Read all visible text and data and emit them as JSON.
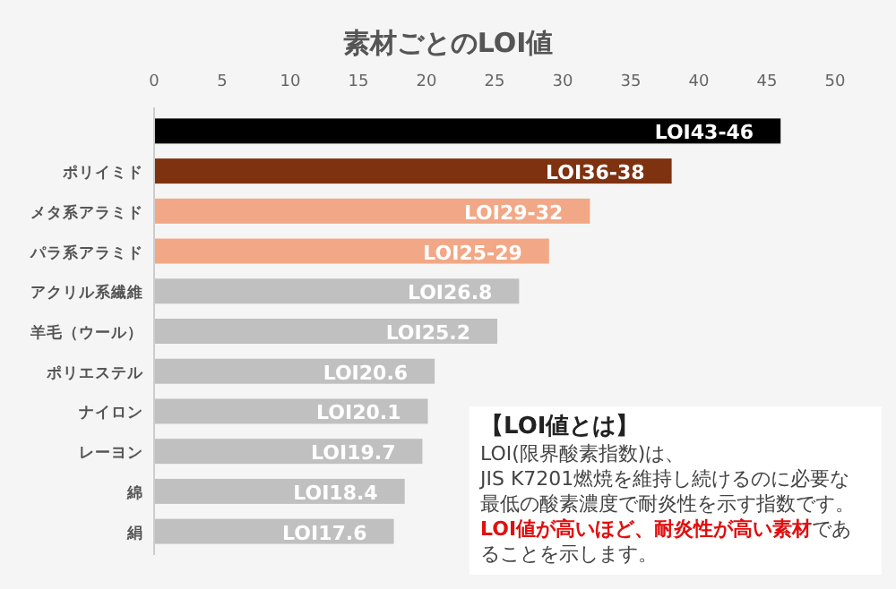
{
  "chart_data": {
    "type": "bar",
    "orientation": "horizontal",
    "title": "素材ごとのLOI値",
    "categories": [
      null,
      "ポリイミド",
      "メタ系アラミド",
      "パラ系アラミド",
      "アクリル系繊維",
      "羊毛（ウール）",
      "ポリエステル",
      "ナイロン",
      "レーヨン",
      "綿",
      "絹"
    ],
    "values": [
      46,
      38,
      32,
      29,
      26.8,
      25.2,
      20.6,
      20.1,
      19.7,
      18.4,
      17.6
    ],
    "colors": [
      "#000000",
      "#7f3210",
      "#f2a886",
      "#f2a886",
      "#c0c0c0",
      "#c0c0c0",
      "#c0c0c0",
      "#c0c0c0",
      "#c0c0c0",
      "#c0c0c0",
      "#c0c0c0"
    ],
    "value_labels": [
      "LOI43-46",
      "LOI36-38",
      "LOI29-32",
      "LOI25-29",
      "LOI26.8",
      "LOI25.2",
      "LOI20.6",
      "LOI20.1",
      "LOI19.7",
      "LOI18.4",
      "LOI17.6"
    ],
    "xlim": [
      0,
      50
    ],
    "xticks": [
      0,
      5,
      10,
      15,
      20,
      25,
      30,
      35,
      40,
      45,
      50
    ],
    "annotations": [
      "【LOI値とは】",
      "LOI(限界酸素指数)は、",
      "JIS K7201燃焼を維持し続けるのに必要な",
      "最低の酸素濃度で耐炎性を示す指数です。",
      "LOI値が高いほど、耐炎性が高い素材",
      "であることを示します。"
    ]
  }
}
